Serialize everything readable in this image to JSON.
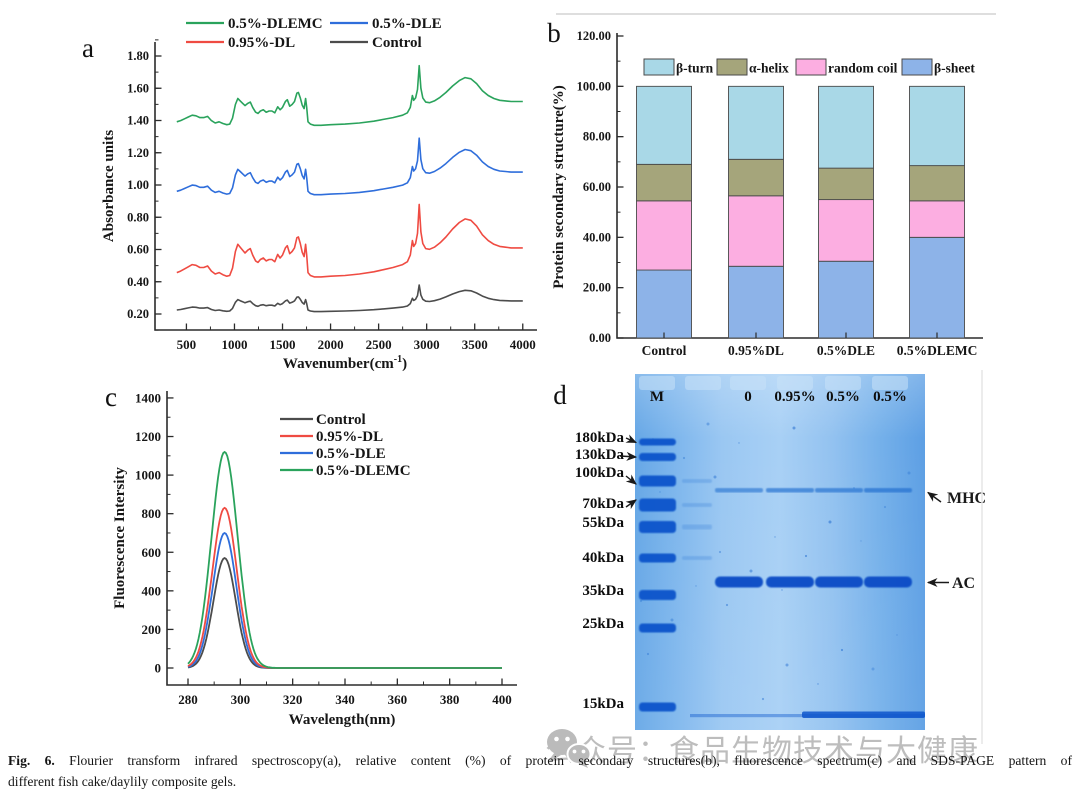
{
  "figure": {
    "caption_prefix": "Fig. 6.",
    "caption_line1": " Flourier transform infrared spectroscopy(a), relative content (%) of protein secondary structures(b), fluorescence spectrum(c) and SDS-PAGE pattern of",
    "caption_line2": "different fish cake/daylily composite gels."
  },
  "watermark": {
    "icon": "wechat-logo",
    "text": "公众号：食品生物技术与大健康",
    "color": "#adadad"
  },
  "panels": {
    "a": "a",
    "b": "b",
    "c": "c",
    "d": "d"
  },
  "chart_data": [
    {
      "id": "a",
      "type": "line",
      "title": "",
      "xlabel_pre": "Wavenumber(cm",
      "xlabel_sup": "-1",
      "xlabel_post": ")",
      "ylabel": "Absorbance units",
      "x_ticks": [
        500,
        1000,
        1500,
        2000,
        2500,
        3000,
        3500,
        4000
      ],
      "y_ticks": [
        0.2,
        0.4,
        0.6,
        0.8,
        1.0,
        1.2,
        1.4,
        1.6,
        1.8
      ],
      "y_tick_decimals": 2,
      "xlim": [
        350,
        4150
      ],
      "ylim": [
        0.1,
        1.9
      ],
      "legend_rows": [
        [
          {
            "label": "0.5%-DLEMC",
            "color": "#2aa35c"
          },
          {
            "label": "0.5%-DLE",
            "color": "#2f6edb"
          }
        ],
        [
          {
            "label": "0.95%-DL",
            "color": "#ef4b42"
          },
          {
            "label": "Control",
            "color": "#4c4c4c"
          }
        ]
      ],
      "profile_normalized": [
        [
          400,
          0.06
        ],
        [
          440,
          0.08
        ],
        [
          480,
          0.11
        ],
        [
          520,
          0.14
        ],
        [
          560,
          0.17
        ],
        [
          600,
          0.16
        ],
        [
          640,
          0.13
        ],
        [
          680,
          0.13
        ],
        [
          720,
          0.15
        ],
        [
          760,
          0.08
        ],
        [
          800,
          0.04
        ],
        [
          840,
          0.06
        ],
        [
          880,
          0.03
        ],
        [
          920,
          0.01
        ],
        [
          950,
          0.02
        ],
        [
          980,
          0.12
        ],
        [
          1010,
          0.35
        ],
        [
          1035,
          0.45
        ],
        [
          1060,
          0.41
        ],
        [
          1085,
          0.37
        ],
        [
          1110,
          0.33
        ],
        [
          1140,
          0.37
        ],
        [
          1165,
          0.39
        ],
        [
          1190,
          0.3
        ],
        [
          1220,
          0.22
        ],
        [
          1245,
          0.2
        ],
        [
          1270,
          0.24
        ],
        [
          1300,
          0.26
        ],
        [
          1330,
          0.22
        ],
        [
          1360,
          0.24
        ],
        [
          1390,
          0.24
        ],
        [
          1420,
          0.21
        ],
        [
          1450,
          0.31
        ],
        [
          1475,
          0.26
        ],
        [
          1500,
          0.3
        ],
        [
          1530,
          0.4
        ],
        [
          1550,
          0.43
        ],
        [
          1575,
          0.32
        ],
        [
          1600,
          0.35
        ],
        [
          1625,
          0.4
        ],
        [
          1650,
          0.54
        ],
        [
          1665,
          0.55
        ],
        [
          1685,
          0.46
        ],
        [
          1705,
          0.34
        ],
        [
          1725,
          0.28
        ],
        [
          1740,
          0.45
        ],
        [
          1752,
          0.3
        ],
        [
          1765,
          0.06
        ],
        [
          1790,
          0.02
        ],
        [
          1830,
          0.0
        ],
        [
          1900,
          0.0
        ],
        [
          2000,
          0.01
        ],
        [
          2150,
          0.02
        ],
        [
          2300,
          0.04
        ],
        [
          2450,
          0.07
        ],
        [
          2550,
          0.1
        ],
        [
          2650,
          0.13
        ],
        [
          2750,
          0.17
        ],
        [
          2800,
          0.21
        ],
        [
          2830,
          0.3
        ],
        [
          2852,
          0.5
        ],
        [
          2865,
          0.42
        ],
        [
          2885,
          0.46
        ],
        [
          2905,
          0.6
        ],
        [
          2922,
          1.0
        ],
        [
          2940,
          0.62
        ],
        [
          2960,
          0.46
        ],
        [
          2990,
          0.39
        ],
        [
          3030,
          0.38
        ],
        [
          3080,
          0.41
        ],
        [
          3140,
          0.47
        ],
        [
          3200,
          0.55
        ],
        [
          3270,
          0.66
        ],
        [
          3340,
          0.75
        ],
        [
          3400,
          0.8
        ],
        [
          3460,
          0.78
        ],
        [
          3520,
          0.7
        ],
        [
          3580,
          0.58
        ],
        [
          3640,
          0.5
        ],
        [
          3700,
          0.45
        ],
        [
          3760,
          0.42
        ],
        [
          3820,
          0.41
        ],
        [
          3880,
          0.4
        ],
        [
          3940,
          0.4
        ],
        [
          4000,
          0.4
        ]
      ],
      "series": [
        {
          "name": "0.5%-DLEMC",
          "color": "#2aa35c",
          "baseline_absorbance": 1.37,
          "amplitude": 0.37
        },
        {
          "name": "0.5%-DLE",
          "color": "#2f6edb",
          "baseline_absorbance": 0.94,
          "amplitude": 0.35
        },
        {
          "name": "0.95%-DL",
          "color": "#ef4b42",
          "baseline_absorbance": 0.43,
          "amplitude": 0.45
        },
        {
          "name": "Control",
          "color": "#4c4c4c",
          "baseline_absorbance": 0.215,
          "amplitude": 0.165
        }
      ]
    },
    {
      "id": "b",
      "type": "bar",
      "stacked": true,
      "ylabel": "Protein secondary structure(%)",
      "categories": [
        "Control",
        "0.95%DL",
        "0.5%DLE",
        "0.5%DLEMC"
      ],
      "y_ticks": [
        0,
        20,
        40,
        60,
        80,
        100,
        120
      ],
      "y_tick_decimals": 2,
      "ylim": [
        0,
        120
      ],
      "legend": [
        {
          "label": "β-turn",
          "color": "#a9d8e7"
        },
        {
          "label": "α-helix",
          "color": "#a5a57b"
        },
        {
          "label": "random coil",
          "color": "#fcaee1"
        },
        {
          "label": "β-sheet",
          "color": "#8db3e8"
        }
      ],
      "series": [
        {
          "name": "β-sheet",
          "color": "#8db3e8",
          "values": [
            27.0,
            28.5,
            30.5,
            40.0
          ]
        },
        {
          "name": "random coil",
          "color": "#fcaee1",
          "values": [
            27.5,
            28.0,
            24.5,
            14.5
          ]
        },
        {
          "name": "α-helix",
          "color": "#a5a57b",
          "values": [
            14.5,
            14.5,
            12.5,
            14.0
          ]
        },
        {
          "name": "β-turn",
          "color": "#a9d8e7",
          "values": [
            31.0,
            29.0,
            32.5,
            31.5
          ]
        }
      ]
    },
    {
      "id": "c",
      "type": "line",
      "xlabel": "Wavelength(nm)",
      "ylabel": "Fluorescence Intersity",
      "x_ticks": [
        280,
        300,
        320,
        340,
        360,
        380,
        400
      ],
      "y_ticks": [
        0,
        200,
        400,
        600,
        800,
        1000,
        1200,
        1400
      ],
      "y_tick_decimals": 0,
      "xlim": [
        280,
        400
      ],
      "ylim": [
        0,
        1400
      ],
      "peak_center_nm": 294,
      "series": [
        {
          "name": "Control",
          "color": "#4c4c4c",
          "peak_intensity": 570,
          "sigma_nm": 4.3
        },
        {
          "name": "0.95%-DL",
          "color": "#ef4b42",
          "peak_intensity": 830,
          "sigma_nm": 4.7
        },
        {
          "name": "0.5%-DLE",
          "color": "#2f6edb",
          "peak_intensity": 700,
          "sigma_nm": 4.5
        },
        {
          "name": "0.5%-DLEMC",
          "color": "#2aa35c",
          "peak_intensity": 1120,
          "sigma_nm": 5.0
        }
      ]
    },
    {
      "id": "d",
      "type": "gel",
      "description": "SDS-PAGE pattern",
      "lane_labels": [
        "M",
        "0",
        "0.95%",
        "0.5%",
        "0.5%"
      ],
      "marker_labels": [
        "180kDa",
        "130kDa",
        "100kDa",
        "70kDa",
        "55kDa",
        "40kDa",
        "35kDa",
        "25kDa",
        "15kDa"
      ],
      "annotations": [
        "MHC",
        "AC"
      ],
      "gel_base_color": "#6aa9e8",
      "gel_light_color": "#a8d0f5",
      "band_color": "#0d55cb"
    }
  ]
}
